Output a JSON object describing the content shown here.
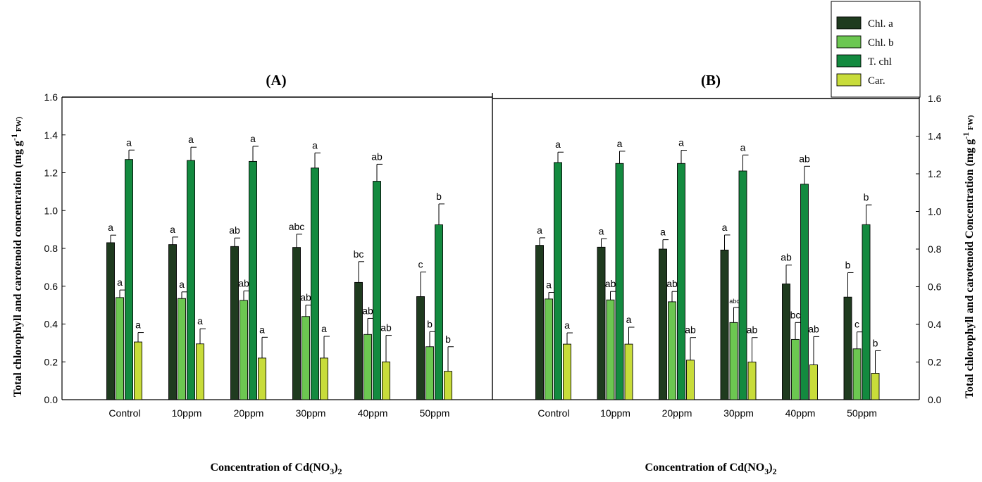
{
  "chart_data": [
    {
      "type": "bar",
      "title": "(A)",
      "xlabel": "Concentration of Cd(NO3)2",
      "xlabel_main": "Concentration of Cd(NO",
      "xlabel_sub1": "3",
      "xlabel_mid": ")",
      "xlabel_sub2": "2",
      "ylabel": "Total chlorophyll and carotenoid concentration (mg g-1 FW)",
      "ylabel_main": "Total chlorophyll and carotenoid concentration (mg g",
      "ylabel_sup": "-1",
      "ylabel_end": " FW)",
      "ylim": [
        0,
        1.6
      ],
      "yticks": [
        "0.0",
        "0.2",
        "0.4",
        "0.6",
        "0.8",
        "1.0",
        "1.2",
        "1.4",
        "1.6"
      ],
      "categories": [
        "Control",
        "10ppm",
        "20ppm",
        "30ppm",
        "40ppm",
        "50ppm"
      ],
      "series": [
        {
          "name": "Chl. a",
          "values": [
            0.83,
            0.82,
            0.81,
            0.805,
            0.62,
            0.545
          ],
          "errors": [
            0.04,
            0.04,
            0.045,
            0.07,
            0.11,
            0.13
          ],
          "letters": [
            "a",
            "a",
            "ab",
            "abc",
            "bc",
            "c"
          ]
        },
        {
          "name": "Chl. b",
          "values": [
            0.54,
            0.535,
            0.525,
            0.44,
            0.345,
            0.28
          ],
          "errors": [
            0.04,
            0.035,
            0.05,
            0.06,
            0.085,
            0.08
          ],
          "letters": [
            "a",
            "a",
            "ab",
            "ab",
            "ab",
            "b"
          ]
        },
        {
          "name": "T. chl",
          "values": [
            1.27,
            1.265,
            1.26,
            1.225,
            1.155,
            0.925
          ],
          "errors": [
            0.05,
            0.07,
            0.08,
            0.08,
            0.09,
            0.11
          ],
          "letters": [
            "a",
            "a",
            "a",
            "a",
            "ab",
            "b"
          ]
        },
        {
          "name": "Car.",
          "values": [
            0.305,
            0.295,
            0.22,
            0.22,
            0.2,
            0.15
          ],
          "errors": [
            0.05,
            0.08,
            0.11,
            0.115,
            0.14,
            0.13
          ],
          "letters": [
            "a",
            "a",
            "a",
            "a",
            "ab",
            "b"
          ]
        }
      ]
    },
    {
      "type": "bar",
      "title": "(B)",
      "xlabel": "Concentration of Cd(NO3)2",
      "xlabel_main": "Concentration of Cd(NO",
      "xlabel_sub1": "3",
      "xlabel_mid": ")",
      "xlabel_sub2": "2",
      "ylabel": "Total chlorophyll and carotenoid Concentration (mg g-1 FW)",
      "ylabel_main": "Total chlorophyll and carotenoid Concentration (mg g",
      "ylabel_sup": "-1",
      "ylabel_end": " FW)",
      "ylim": [
        0,
        1.6
      ],
      "yticks": [
        "0.0",
        "0.2",
        "0.4",
        "0.6",
        "0.8",
        "1.0",
        "1.2",
        "1.4",
        "1.6"
      ],
      "categories": [
        "Control",
        "10ppm",
        "20ppm",
        "30ppm",
        "40ppm",
        "50ppm"
      ],
      "series": [
        {
          "name": "Chl. a",
          "values": [
            0.82,
            0.81,
            0.8,
            0.795,
            0.615,
            0.545
          ],
          "errors": [
            0.04,
            0.045,
            0.05,
            0.08,
            0.1,
            0.13
          ],
          "letters": [
            "a",
            "a",
            "a",
            "a",
            "ab",
            "b"
          ]
        },
        {
          "name": "Chl. b",
          "values": [
            0.535,
            0.53,
            0.52,
            0.41,
            0.32,
            0.27
          ],
          "errors": [
            0.035,
            0.045,
            0.055,
            0.08,
            0.09,
            0.09
          ],
          "letters": [
            "a",
            "ab",
            "ab",
            "abc",
            "bc",
            "c"
          ]
        },
        {
          "name": "T. chl",
          "values": [
            1.26,
            1.255,
            1.255,
            1.215,
            1.145,
            0.93
          ],
          "errors": [
            0.055,
            0.065,
            0.07,
            0.085,
            0.095,
            0.105
          ],
          "letters": [
            "a",
            "a",
            "a",
            "a",
            "ab",
            "b"
          ]
        },
        {
          "name": "Car.",
          "values": [
            0.295,
            0.295,
            0.21,
            0.2,
            0.185,
            0.14
          ],
          "errors": [
            0.06,
            0.09,
            0.12,
            0.13,
            0.15,
            0.12
          ],
          "letters": [
            "a",
            "a",
            "ab",
            "ab",
            "ab",
            "b"
          ]
        }
      ]
    }
  ],
  "legend": {
    "position": "top-right",
    "items": [
      {
        "label": "Chl. a",
        "color": "#1f3b1f"
      },
      {
        "label": "Chl. b",
        "color": "#6cc751"
      },
      {
        "label": "T. chl",
        "color": "#138a3f"
      },
      {
        "label": "Car.",
        "color": "#c8dc3a"
      }
    ]
  }
}
